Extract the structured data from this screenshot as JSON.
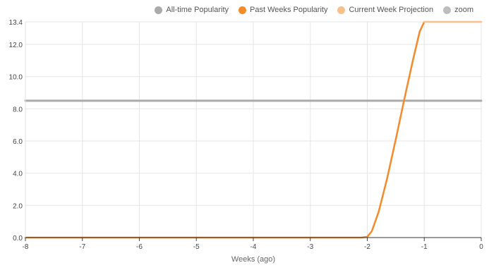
{
  "chart_data": {
    "type": "line",
    "title": "",
    "xlabel": "Weeks (ago)",
    "ylabel": "",
    "xlim": [
      -8,
      0
    ],
    "ylim": [
      0,
      13.4
    ],
    "x_ticks": [
      -8,
      -7,
      -6,
      -5,
      -4,
      -3,
      -2,
      -1,
      0
    ],
    "y_ticks": [
      0.0,
      2.0,
      4.0,
      6.0,
      8.0,
      10.0,
      12.0,
      13.4
    ],
    "y_tick_labels": [
      "0.0",
      "2.0",
      "4.0",
      "6.0",
      "8.0",
      "10.0",
      "12.0",
      "13.4"
    ],
    "grid": true,
    "legend_position": "top-right",
    "series": [
      {
        "name": "All-time Popularity",
        "color": "#aaaaaa",
        "x": [
          -8,
          0
        ],
        "y": [
          8.5,
          8.5
        ]
      },
      {
        "name": "Past Weeks Popularity",
        "color": "#f58a2a",
        "x": [
          -8,
          -7,
          -6,
          -5,
          -4,
          -3,
          -2.1,
          -2,
          -1.92,
          -1.8,
          -1.65,
          -1.5,
          -1.35,
          -1.2,
          -1.08,
          -1
        ],
        "y": [
          0,
          0,
          0,
          0,
          0,
          0,
          0,
          0.05,
          0.4,
          1.6,
          3.7,
          6.1,
          8.6,
          11.0,
          12.8,
          13.4
        ]
      },
      {
        "name": "Current Week Projection",
        "color": "#f8c08a",
        "x": [
          -1,
          0
        ],
        "y": [
          13.4,
          13.4
        ]
      },
      {
        "name": "zoom",
        "color": "#bdbdbd",
        "x": [],
        "y": []
      }
    ]
  }
}
